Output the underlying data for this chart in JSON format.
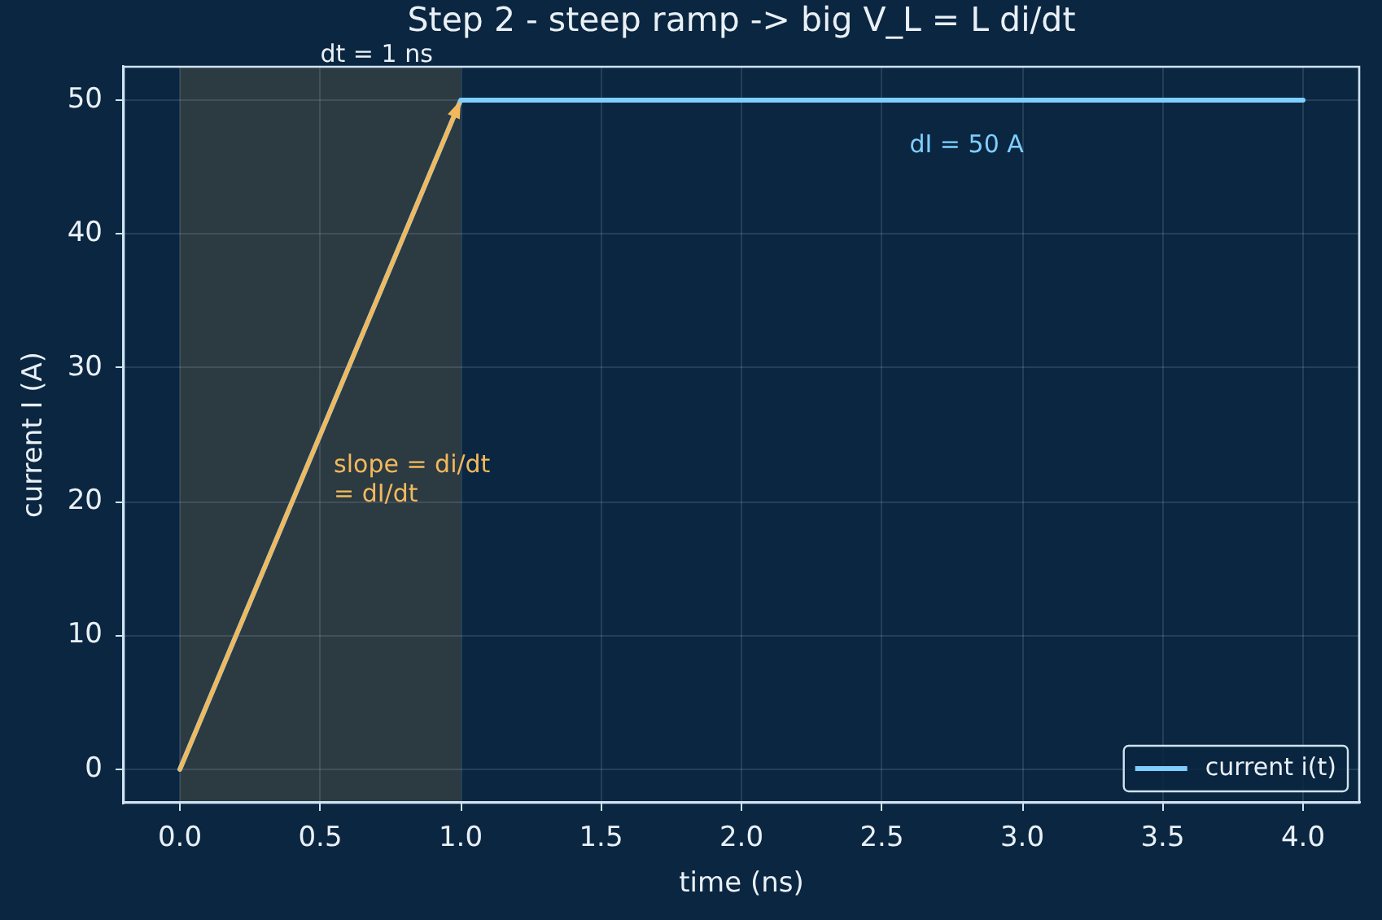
{
  "chart_data": {
    "type": "line",
    "title": "Step 2 - steep ramp -> big V_L = L di/dt",
    "xlabel": "time (ns)",
    "ylabel": "current I (A)",
    "x": [
      0,
      1,
      4
    ],
    "series": [
      {
        "name": "current i(t)",
        "color": "#7ecfff",
        "values": [
          0,
          50,
          50
        ]
      }
    ],
    "xlim": [
      -0.2,
      4.2
    ],
    "ylim": [
      -2.5,
      52.5
    ],
    "xticks": [
      {
        "value": 0,
        "label": "0.0"
      },
      {
        "value": 0.5,
        "label": "0.5"
      },
      {
        "value": 1,
        "label": "1.0"
      },
      {
        "value": 1.5,
        "label": "1.5"
      },
      {
        "value": 2,
        "label": "2.0"
      },
      {
        "value": 2.5,
        "label": "2.5"
      },
      {
        "value": 3,
        "label": "3.0"
      },
      {
        "value": 3.5,
        "label": "3.5"
      },
      {
        "value": 4,
        "label": "4.0"
      }
    ],
    "yticks": [
      0,
      10,
      20,
      30,
      40,
      50
    ],
    "bands": [
      {
        "axis": "x",
        "from": 0,
        "to": 1,
        "label": "dt = 1 ns",
        "color": "#2c3a42"
      }
    ],
    "annotations": [
      "slope = di/dt\n= dI/dt",
      "dI = 50 A"
    ],
    "grid": true,
    "legend": "bottom right",
    "marker": "none",
    "line_style": "solid"
  }
}
